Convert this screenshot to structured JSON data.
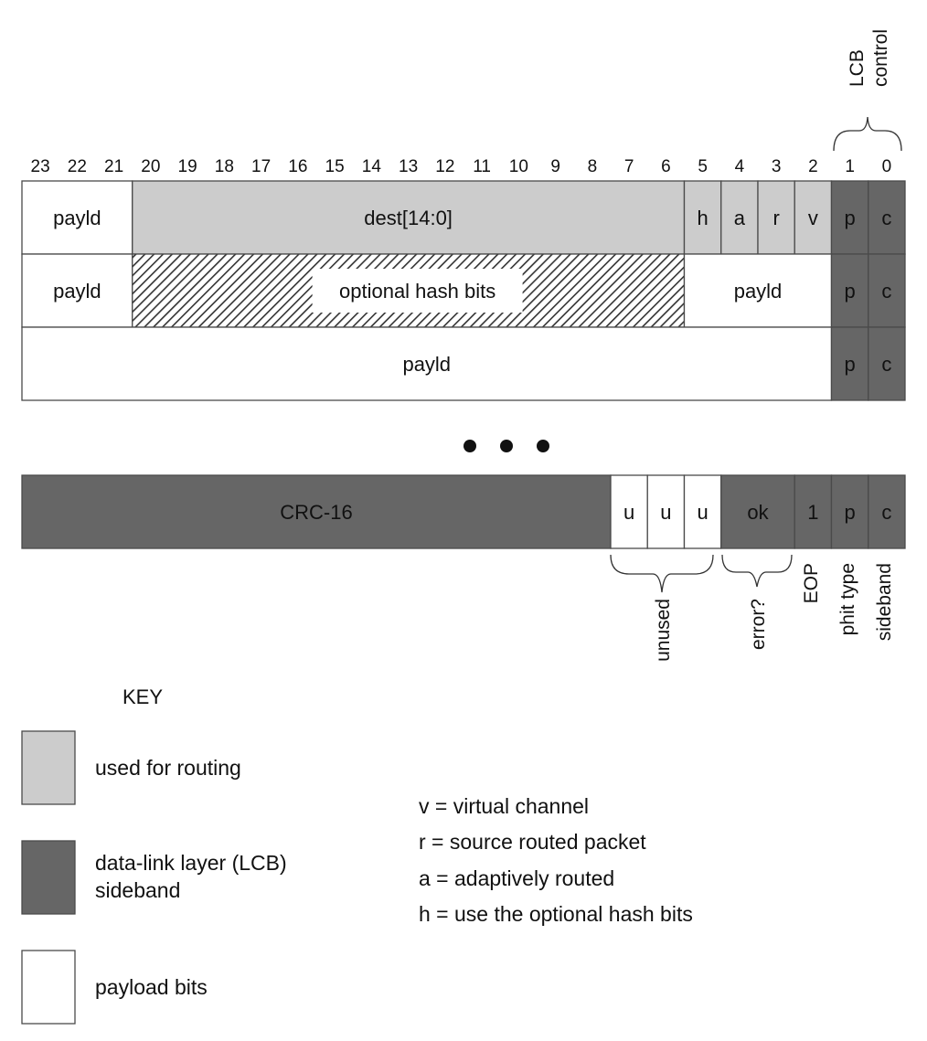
{
  "colors": {
    "routing": "#cccccc",
    "sideband": "#666666",
    "payload": "#ffffff",
    "border": "#4a4a4a",
    "hatch": "#333333"
  },
  "bit_numbers": [
    "23",
    "22",
    "21",
    "20",
    "19",
    "18",
    "17",
    "16",
    "15",
    "14",
    "13",
    "12",
    "11",
    "10",
    "9",
    "8",
    "7",
    "6",
    "5",
    "4",
    "3",
    "2",
    "1",
    "0"
  ],
  "top_bracket_label": [
    "LCB",
    "control"
  ],
  "rows": [
    {
      "cells": [
        {
          "text": "payld",
          "hi": 23,
          "lo": 21,
          "kind": "payload"
        },
        {
          "text": "dest[14:0]",
          "hi": 20,
          "lo": 6,
          "kind": "routing"
        },
        {
          "text": "h",
          "hi": 5,
          "lo": 5,
          "kind": "routing"
        },
        {
          "text": "a",
          "hi": 4,
          "lo": 4,
          "kind": "routing"
        },
        {
          "text": "r",
          "hi": 3,
          "lo": 3,
          "kind": "routing"
        },
        {
          "text": "v",
          "hi": 2,
          "lo": 2,
          "kind": "routing"
        },
        {
          "text": "p",
          "hi": 1,
          "lo": 1,
          "kind": "sideband"
        },
        {
          "text": "c",
          "hi": 0,
          "lo": 0,
          "kind": "sideband"
        }
      ]
    },
    {
      "cells": [
        {
          "text": "payld",
          "hi": 23,
          "lo": 21,
          "kind": "payload"
        },
        {
          "text": "optional hash bits",
          "hi": 20,
          "lo": 6,
          "kind": "hatched"
        },
        {
          "text": "payld",
          "hi": 5,
          "lo": 2,
          "kind": "payload"
        },
        {
          "text": "p",
          "hi": 1,
          "lo": 1,
          "kind": "sideband"
        },
        {
          "text": "c",
          "hi": 0,
          "lo": 0,
          "kind": "sideband"
        }
      ]
    },
    {
      "cells": [
        {
          "text": "payld",
          "hi": 23,
          "lo": 2,
          "kind": "payload"
        },
        {
          "text": "p",
          "hi": 1,
          "lo": 1,
          "kind": "sideband"
        },
        {
          "text": "c",
          "hi": 0,
          "lo": 0,
          "kind": "sideband"
        }
      ]
    }
  ],
  "tail_row": {
    "cells": [
      {
        "text": "CRC-16",
        "hi": 23,
        "lo": 8,
        "kind": "sideband"
      },
      {
        "text": "u",
        "hi": 7,
        "lo": 7,
        "kind": "payload"
      },
      {
        "text": "u",
        "hi": 6,
        "lo": 6,
        "kind": "payload"
      },
      {
        "text": "u",
        "hi": 5,
        "lo": 5,
        "kind": "payload"
      },
      {
        "text": "ok",
        "hi": 4,
        "lo": 3,
        "kind": "sideband"
      },
      {
        "text": "1",
        "hi": 2,
        "lo": 2,
        "kind": "sideband"
      },
      {
        "text": "p",
        "hi": 1,
        "lo": 1,
        "kind": "sideband"
      },
      {
        "text": "c",
        "hi": 0,
        "lo": 0,
        "kind": "sideband"
      }
    ]
  },
  "bottom_labels": {
    "unused": "unused",
    "error": "error?",
    "eop": "EOP",
    "phit_type": "phit type",
    "sideband": "sideband"
  },
  "key": {
    "title": "KEY",
    "items": [
      {
        "kind": "routing",
        "lines": [
          "used for routing"
        ]
      },
      {
        "kind": "sideband",
        "lines": [
          "data-link layer (LCB)",
          "sideband"
        ]
      },
      {
        "kind": "payload",
        "lines": [
          "payload bits"
        ]
      }
    ]
  },
  "legend": [
    "v = virtual channel",
    "r = source routed packet",
    "a = adaptively routed",
    "h = use the optional hash bits"
  ]
}
